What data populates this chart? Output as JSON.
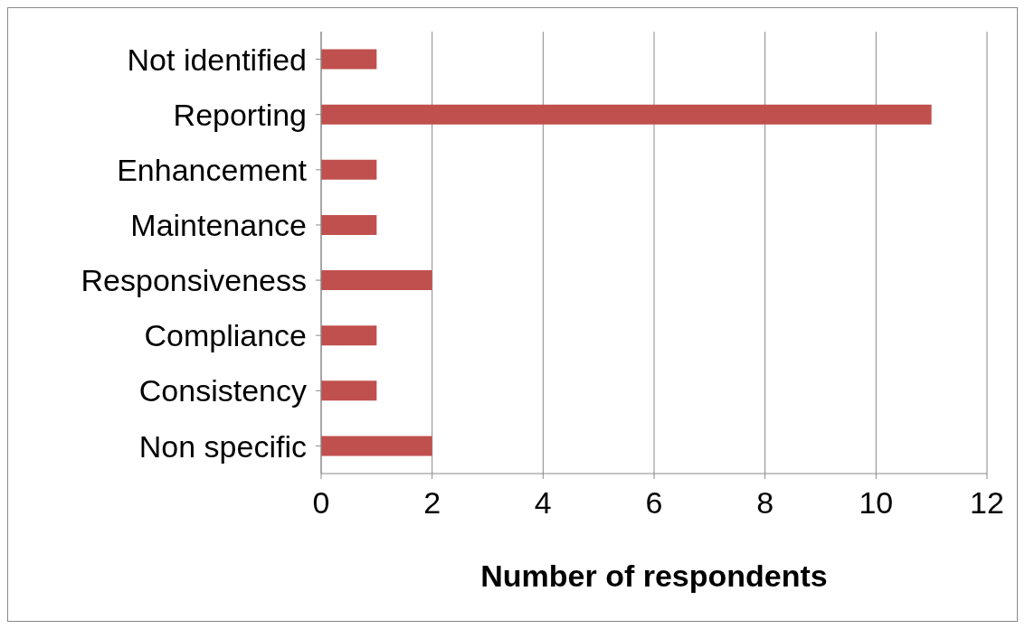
{
  "chart_data": {
    "type": "bar",
    "orientation": "horizontal",
    "xlabel": "Number of respondents",
    "categories": [
      "Not identified",
      "Reporting",
      "Enhancement",
      "Maintenance",
      "Responsiveness",
      "Compliance",
      "Consistency",
      "Non specific"
    ],
    "values": [
      1,
      11,
      1,
      1,
      2,
      1,
      1,
      2
    ],
    "color": "#c0504d",
    "xlim": [
      0,
      12
    ],
    "xticks": [
      0,
      2,
      4,
      6,
      8,
      10,
      12
    ],
    "grid": "x",
    "legend": false
  }
}
